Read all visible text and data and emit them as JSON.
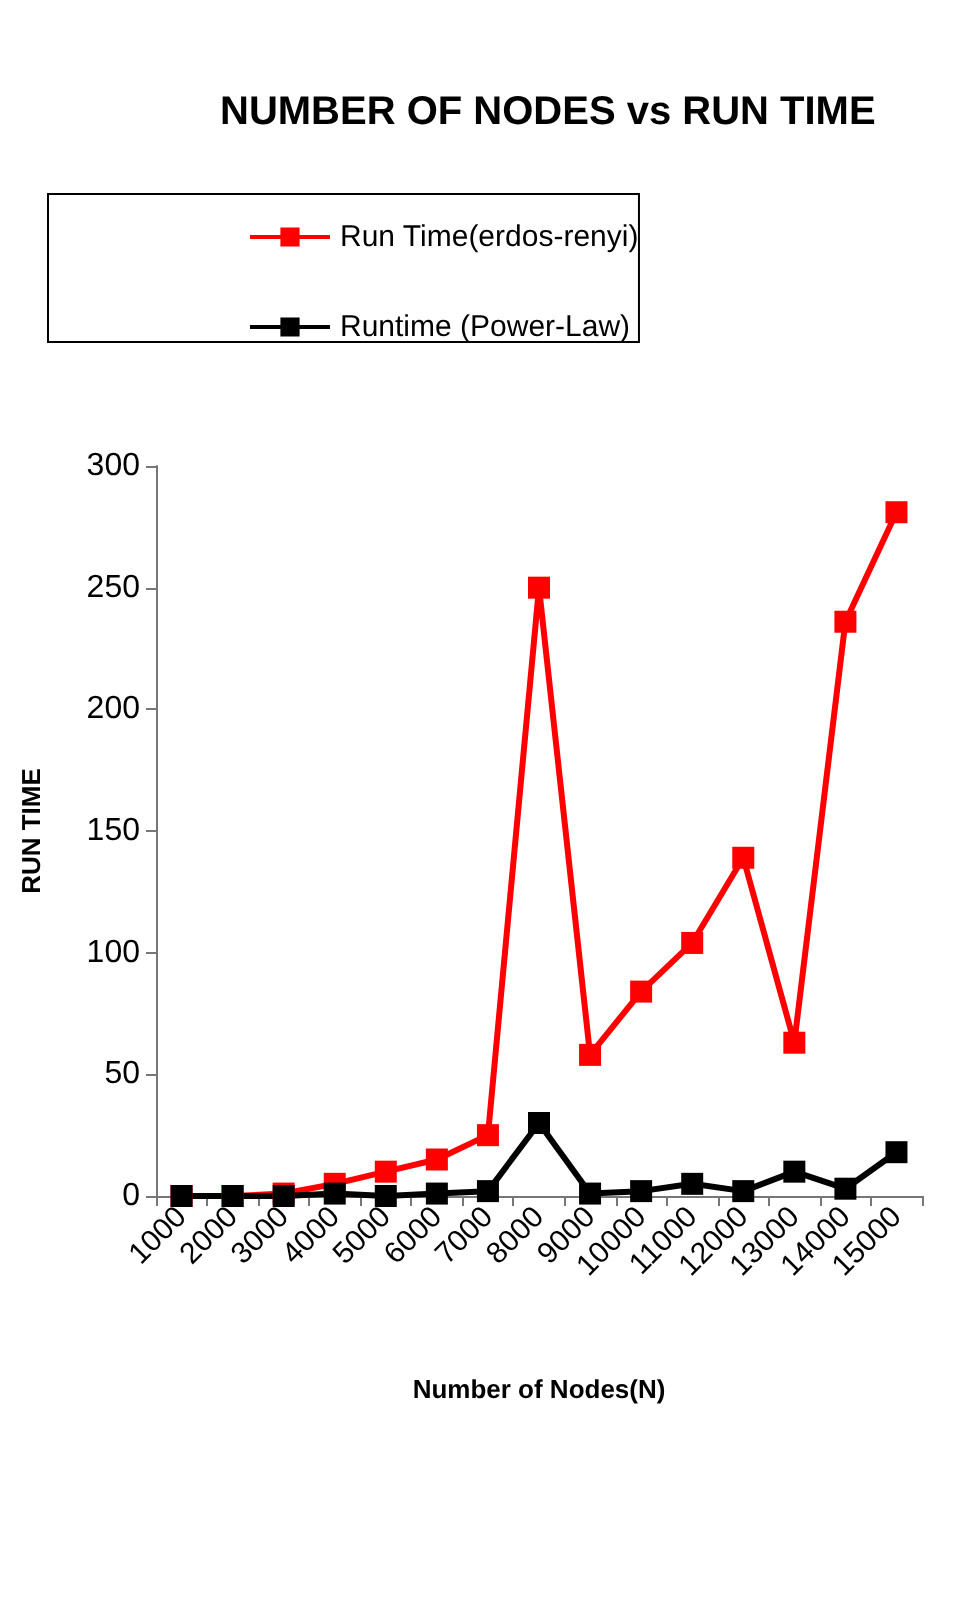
{
  "chart_data": {
    "type": "line",
    "title": "NUMBER OF NODES vs RUN TIME",
    "xlabel": "Number of Nodes(N)",
    "ylabel": "RUN TIME",
    "categories": [
      "1000",
      "2000",
      "3000",
      "4000",
      "5000",
      "6000",
      "7000",
      "8000",
      "9000",
      "10000",
      "11000",
      "12000",
      "13000",
      "14000",
      "15000"
    ],
    "series": [
      {
        "name": "Run Time(erdos-renyi)",
        "color": "#ff0000",
        "values": [
          0,
          0,
          1,
          5,
          10,
          15,
          25,
          250,
          58,
          84,
          104,
          139,
          63,
          236,
          281
        ]
      },
      {
        "name": "Runtime (Power-Law)",
        "color": "#000000",
        "values": [
          0,
          0,
          0,
          1,
          0,
          1,
          2,
          30,
          1,
          2,
          5,
          2,
          10,
          3,
          18
        ]
      }
    ],
    "ylim": [
      0,
      300
    ],
    "yticks": [
      0,
      50,
      100,
      150,
      200,
      250,
      300
    ],
    "grid": false,
    "legend": "top",
    "marker": "square",
    "line_style": "solid"
  }
}
